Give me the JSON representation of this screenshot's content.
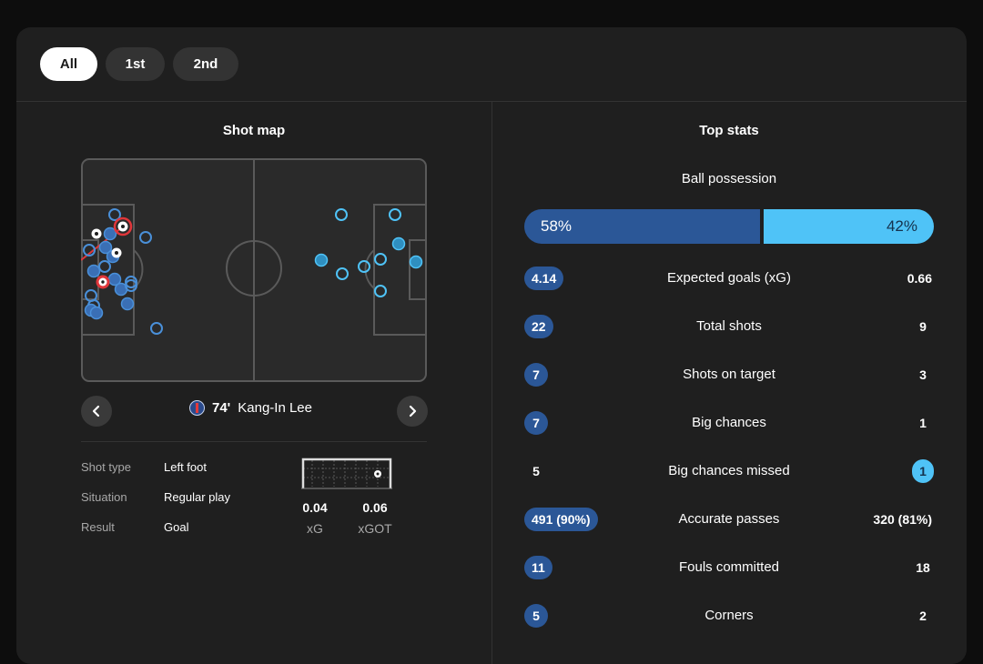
{
  "filters": [
    {
      "label": "All",
      "active": true
    },
    {
      "label": "1st",
      "active": false
    },
    {
      "label": "2nd",
      "active": false
    }
  ],
  "shot_map": {
    "title": "Shot map",
    "player": {
      "minute": "74'",
      "name": "Kang-In Lee"
    },
    "details": [
      {
        "label": "Shot type",
        "value": "Left foot"
      },
      {
        "label": "Situation",
        "value": "Regular play"
      },
      {
        "label": "Result",
        "value": "Goal"
      }
    ],
    "xg": {
      "value": "0.04",
      "label": "xG"
    },
    "xgot": {
      "value": "0.06",
      "label": "xGOT"
    }
  },
  "top_stats": {
    "title": "Top stats",
    "possession": {
      "label": "Ball possession",
      "home": "58%",
      "away": "42%",
      "home_pct": 58
    },
    "rows": [
      {
        "label": "Expected goals (xG)",
        "home": "4.14",
        "away": "0.66",
        "highlight": "home"
      },
      {
        "label": "Total shots",
        "home": "22",
        "away": "9",
        "highlight": "home"
      },
      {
        "label": "Shots on target",
        "home": "7",
        "away": "3",
        "highlight": "home"
      },
      {
        "label": "Big chances",
        "home": "7",
        "away": "1",
        "highlight": "home"
      },
      {
        "label": "Big chances missed",
        "home": "5",
        "away": "1",
        "highlight": "away"
      },
      {
        "label": "Accurate passes",
        "home": "491 (90%)",
        "away": "320 (81%)",
        "highlight": "home"
      },
      {
        "label": "Fouls committed",
        "home": "11",
        "away": "18",
        "highlight": "home"
      },
      {
        "label": "Corners",
        "home": "5",
        "away": "2",
        "highlight": "home"
      }
    ]
  },
  "colors": {
    "home": "#2b5797",
    "away": "#4fc3f7",
    "selected": "#e0363a"
  }
}
